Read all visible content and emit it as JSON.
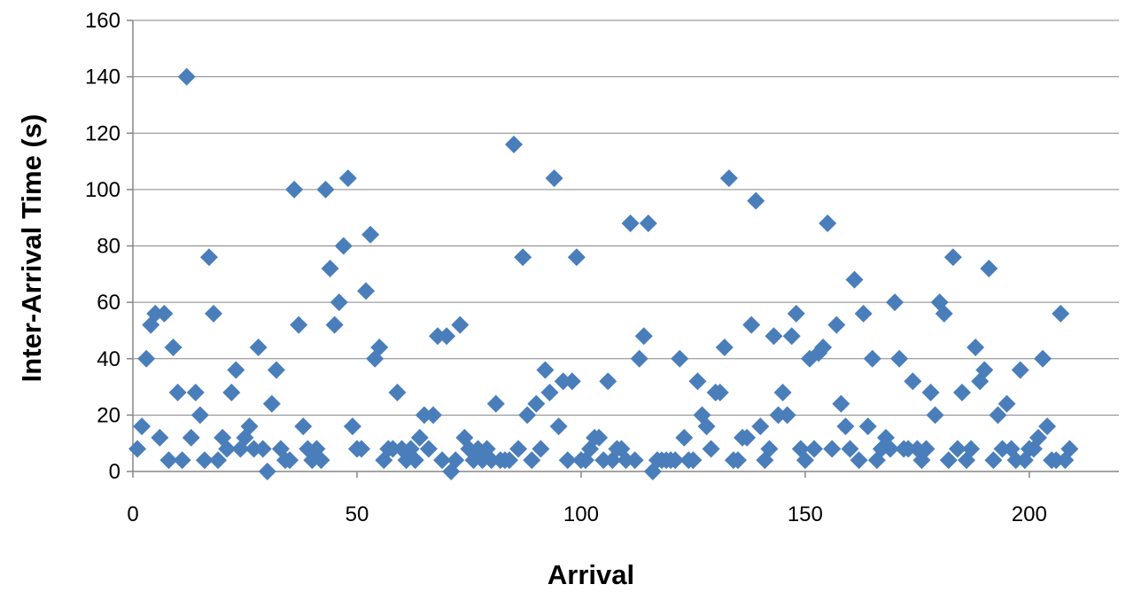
{
  "chart_data": {
    "type": "scatter",
    "title": "",
    "xlabel": "Arrival",
    "ylabel": "Inter-Arrival Time (s)",
    "xlim": [
      0,
      220
    ],
    "ylim": [
      0,
      160
    ],
    "xticks": [
      0,
      50,
      100,
      150,
      200
    ],
    "yticks": [
      0,
      20,
      40,
      60,
      80,
      100,
      120,
      140,
      160
    ],
    "grid": "horizontal",
    "legend": "none",
    "marker": "diamond",
    "marker_color": "#4A7EBB",
    "series": [
      {
        "x": [
          1,
          2,
          3,
          4,
          5,
          6,
          7,
          8,
          9,
          10,
          11,
          12,
          13,
          14,
          15,
          16,
          17,
          18,
          19,
          20,
          21,
          22,
          23,
          24,
          25,
          26,
          27,
          28,
          29,
          30,
          31,
          32,
          33,
          34,
          35,
          36,
          37,
          38,
          39,
          40,
          41,
          42,
          43,
          44,
          45,
          46,
          47,
          48,
          49,
          50,
          51,
          52,
          53,
          54,
          55,
          56,
          57,
          58,
          59,
          60,
          61,
          62,
          63,
          64,
          65,
          66,
          67,
          68,
          69,
          70,
          71,
          72,
          73,
          74,
          75,
          76,
          77,
          78,
          79,
          80,
          81,
          82,
          83,
          84,
          85,
          86,
          87,
          88,
          89,
          90,
          91,
          92,
          93,
          94,
          95,
          96,
          97,
          98,
          99,
          100,
          101,
          102,
          103,
          104,
          105,
          106,
          107,
          108,
          109,
          110,
          111,
          112,
          113,
          114,
          115,
          116,
          117,
          118,
          119,
          120,
          121,
          122,
          123,
          124,
          125,
          126,
          127,
          128,
          129,
          130,
          131,
          132,
          133,
          134,
          135,
          136,
          137,
          138,
          139,
          140,
          141,
          142,
          143,
          144,
          145,
          146,
          147,
          148,
          149,
          150,
          151,
          152,
          153,
          154,
          155,
          156,
          157,
          158,
          159,
          160,
          161,
          162,
          163,
          164,
          165,
          166,
          167,
          168,
          169,
          170,
          171,
          172,
          173,
          174,
          175,
          176,
          177,
          178,
          179,
          180,
          181,
          182,
          183,
          184,
          185,
          186,
          187,
          188,
          189,
          190,
          191,
          192,
          193,
          194,
          195,
          196,
          197,
          198,
          199,
          200,
          201,
          202,
          203,
          204,
          205,
          206,
          207,
          208,
          209
        ],
        "y": [
          8,
          16,
          40,
          52,
          56,
          12,
          56,
          4,
          44,
          28,
          4,
          140,
          12,
          28,
          20,
          4,
          76,
          56,
          4,
          12,
          8,
          28,
          36,
          8,
          12,
          16,
          8,
          44,
          8,
          0,
          24,
          36,
          8,
          4,
          4,
          100,
          52,
          16,
          8,
          4,
          8,
          4,
          100,
          72,
          52,
          60,
          80,
          104,
          16,
          8,
          8,
          64,
          84,
          40,
          44,
          4,
          8,
          8,
          28,
          8,
          4,
          8,
          4,
          12,
          20,
          8,
          20,
          48,
          4,
          48,
          0,
          4,
          52,
          12,
          8,
          4,
          8,
          4,
          8,
          4,
          24,
          4,
          4,
          4,
          116,
          8,
          76,
          20,
          4,
          24,
          8,
          36,
          28,
          104,
          16,
          32,
          4,
          32,
          76,
          4,
          4,
          8,
          12,
          12,
          4,
          32,
          4,
          8,
          8,
          4,
          88,
          4,
          40,
          48,
          88,
          0,
          4,
          4,
          4,
          4,
          4,
          40,
          12,
          4,
          4,
          32,
          20,
          16,
          8,
          28,
          28,
          44,
          104,
          4,
          4,
          12,
          12,
          52,
          96,
          16,
          4,
          8,
          48,
          20,
          28,
          20,
          48,
          56,
          8,
          4,
          40,
          8,
          42,
          44,
          88,
          8,
          52,
          24,
          16,
          8,
          68,
          4,
          56,
          16,
          40,
          4,
          8,
          12,
          8,
          60,
          40,
          8,
          8,
          32,
          8,
          4,
          8,
          28,
          20,
          60,
          56,
          4,
          76,
          8,
          28,
          4,
          8,
          44,
          32,
          36,
          72,
          4,
          20,
          8,
          24,
          8,
          4,
          36,
          4,
          8,
          8,
          12,
          40,
          16,
          4,
          4,
          56,
          4,
          8
        ]
      }
    ]
  }
}
